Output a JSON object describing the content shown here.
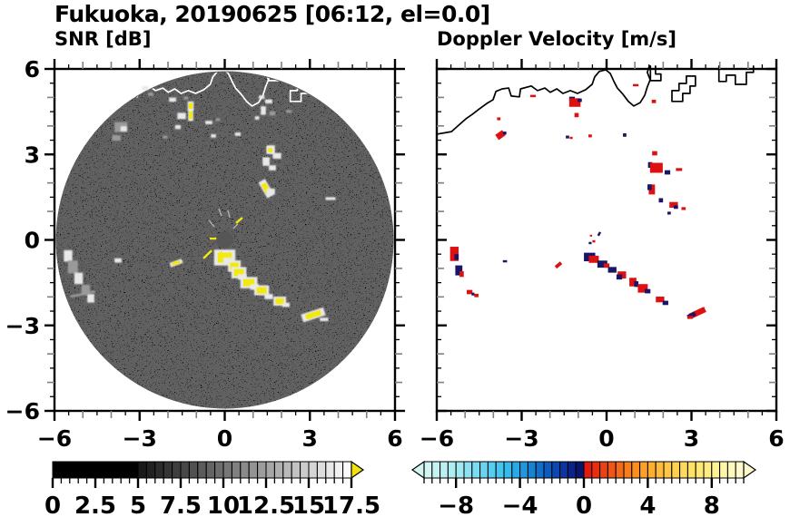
{
  "figure": {
    "title": "Fukuoka, 20190625 [06:12, el=0.0]"
  },
  "colors": {
    "yellow": "#f2e90f",
    "white": "#e9e9e9",
    "gray": "#9a9a9a",
    "red": "#dd1111",
    "navy": "#1a1566",
    "disk": "#000000",
    "center_dot": "#565656",
    "coast_left": "#ffffff",
    "coast_right": "#000000",
    "over_arrow": "#f2e20f"
  },
  "coastline": {
    "units": "km",
    "main": [
      [
        -6,
        3.71
      ],
      [
        -5.48,
        3.8
      ],
      [
        -5.22,
        4.03
      ],
      [
        -4.97,
        4.25
      ],
      [
        -4.74,
        4.41
      ],
      [
        -4.49,
        4.6
      ],
      [
        -4.23,
        4.79
      ],
      [
        -4.01,
        4.92
      ],
      [
        -3.91,
        5.21
      ],
      [
        -3.69,
        5.3
      ],
      [
        -3.46,
        5.33
      ],
      [
        -3.37,
        5.05
      ],
      [
        -3.08,
        5.02
      ],
      [
        -3.04,
        5.3
      ],
      [
        -2.66,
        5.4
      ],
      [
        -2.44,
        5.24
      ],
      [
        -2.18,
        5.33
      ],
      [
        -1.99,
        5.18
      ],
      [
        -1.76,
        5.3
      ],
      [
        -1.54,
        5.14
      ],
      [
        -1.28,
        5.24
      ],
      [
        -1.03,
        5.14
      ],
      [
        -0.74,
        5.27
      ],
      [
        -0.51,
        5.46
      ],
      [
        -0.42,
        5.72
      ],
      [
        -0.26,
        5.91
      ],
      [
        -0.03,
        5.97
      ],
      [
        0.13,
        5.84
      ],
      [
        0.26,
        5.56
      ],
      [
        0.38,
        5.33
      ],
      [
        0.58,
        5.11
      ],
      [
        0.77,
        4.86
      ],
      [
        0.96,
        4.7
      ],
      [
        1.19,
        4.82
      ],
      [
        1.35,
        5.08
      ],
      [
        1.44,
        5.37
      ],
      [
        1.54,
        5.62
      ],
      [
        1.44,
        5.88
      ],
      [
        1.51,
        6.1
      ]
    ],
    "pieces": [
      [
        [
          1.55,
          6.1
        ],
        [
          1.55,
          5.59
        ],
        [
          1.92,
          5.59
        ],
        [
          1.92,
          5.82
        ],
        [
          1.73,
          5.82
        ],
        [
          1.73,
          6.1
        ]
      ],
      [
        [
          2.31,
          4.86
        ],
        [
          2.31,
          5.24
        ],
        [
          2.56,
          5.24
        ],
        [
          2.56,
          5.49
        ],
        [
          2.82,
          5.49
        ],
        [
          2.82,
          5.75
        ],
        [
          3.14,
          5.75
        ],
        [
          3.14,
          5.4
        ],
        [
          2.95,
          5.4
        ],
        [
          2.95,
          5.14
        ],
        [
          2.69,
          5.14
        ],
        [
          2.69,
          4.86
        ],
        [
          2.31,
          4.86
        ]
      ],
      [
        [
          3.97,
          6.1
        ],
        [
          3.97,
          5.56
        ],
        [
          4.23,
          5.56
        ],
        [
          4.23,
          5.78
        ],
        [
          4.55,
          5.78
        ],
        [
          4.55,
          5.46
        ],
        [
          4.94,
          5.46
        ],
        [
          4.94,
          5.88
        ],
        [
          5.19,
          5.88
        ],
        [
          5.19,
          6.1
        ]
      ]
    ]
  },
  "chart_data": [
    {
      "type": "heatmap",
      "panel": "snr",
      "title": "SNR [dB]",
      "xlabel": "",
      "ylabel": "",
      "xlim": [
        -6,
        6
      ],
      "ylim": [
        -6,
        6
      ],
      "x_tick_values": [
        -6,
        -3,
        0,
        3,
        6
      ],
      "x_tick_labels": [
        "−6",
        "−3",
        "0",
        "3",
        "6"
      ],
      "y_tick_values": [
        6,
        3,
        0,
        -3,
        -6
      ],
      "y_tick_labels": [
        "6",
        "3",
        "0",
        "−3",
        "−6"
      ],
      "minor_tick_interval": 0.5,
      "grid": false,
      "disk": {
        "center": [
          0,
          0
        ],
        "radius_km": 5.95,
        "center_dot_radius_km": 0.3
      },
      "center_spokes": [
        [
          0.4,
          0.59,
          0.62,
          0.78,
          "y"
        ],
        [
          0.18,
          0.78,
          0.11,
          1.04,
          "g"
        ],
        [
          -0.11,
          0.84,
          -0.21,
          1.1,
          "g"
        ],
        [
          -0.53,
          0.05,
          -0.27,
          0.05,
          "y"
        ],
        [
          -0.75,
          -0.65,
          -0.46,
          -0.37,
          "y"
        ],
        [
          -0.18,
          -0.5,
          -0.1,
          -0.42,
          "y"
        ],
        [
          0.3,
          0.4,
          0.46,
          0.56,
          "g"
        ],
        [
          -0.37,
          0.46,
          -0.56,
          0.69,
          "g"
        ]
      ],
      "echoes": [
        [
          -2.8,
          5.33,
          0.22,
          0.14,
          "w"
        ],
        [
          -2.61,
          5.11,
          0.18,
          0.12,
          "g"
        ],
        [
          -1.84,
          4.92,
          0.25,
          0.15,
          "w"
        ],
        [
          -1.36,
          4.98,
          0.16,
          0.1,
          "g"
        ],
        [
          -1.2,
          4.7,
          0.14,
          0.2,
          "y"
        ],
        [
          -1.52,
          4.35,
          0.3,
          0.22,
          "w"
        ],
        [
          -1.2,
          4.38,
          0.12,
          0.26,
          "y"
        ],
        [
          -1.65,
          3.96,
          0.2,
          0.14,
          "w"
        ],
        [
          -0.56,
          4.12,
          0.25,
          0.12,
          "w"
        ],
        [
          -0.24,
          4.22,
          0.15,
          0.1,
          "g"
        ],
        [
          -0.4,
          3.65,
          0.18,
          0.12,
          "w"
        ],
        [
          -2.1,
          3.61,
          0.16,
          0.1,
          "g"
        ],
        [
          -3.66,
          3.96,
          0.45,
          0.35,
          "g"
        ],
        [
          -3.56,
          3.9,
          0.22,
          0.18,
          "w"
        ],
        [
          -3.82,
          3.58,
          0.3,
          0.2,
          "g"
        ],
        [
          1.3,
          5.01,
          0.2,
          0.12,
          "w"
        ],
        [
          1.55,
          4.86,
          0.25,
          0.14,
          "w"
        ],
        [
          1.36,
          4.54,
          0.18,
          0.3,
          "w"
        ],
        [
          1.68,
          4.44,
          0.2,
          0.15,
          "g"
        ],
        [
          1.14,
          4.28,
          0.15,
          0.12,
          "w"
        ],
        [
          2.26,
          4.51,
          0.2,
          0.1,
          "g"
        ],
        [
          0.46,
          3.71,
          0.2,
          0.12,
          "w"
        ],
        [
          1.62,
          3.17,
          0.3,
          0.3,
          "w"
        ],
        [
          1.6,
          3.15,
          0.15,
          0.15,
          "y"
        ],
        [
          1.84,
          2.95,
          0.3,
          0.2,
          "w"
        ],
        [
          1.46,
          2.75,
          0.25,
          0.3,
          "w"
        ],
        [
          1.68,
          2.53,
          0.25,
          0.18,
          "w"
        ],
        [
          1.46,
          1.8,
          0.18,
          0.4,
          "y",
          -30
        ],
        [
          1.62,
          1.7,
          0.3,
          0.2,
          "w"
        ],
        [
          3.73,
          1.45,
          0.35,
          0.1,
          "w"
        ],
        [
          0.0,
          -0.62,
          0.5,
          0.35,
          "y"
        ],
        [
          0.1,
          -0.72,
          0.3,
          0.2,
          "w"
        ],
        [
          0.34,
          -0.92,
          0.3,
          0.25,
          "y"
        ],
        [
          0.5,
          -1.15,
          0.35,
          0.25,
          "y"
        ],
        [
          0.62,
          -1.3,
          0.3,
          0.2,
          "w"
        ],
        [
          0.85,
          -1.5,
          0.4,
          0.25,
          "y"
        ],
        [
          1.05,
          -1.65,
          0.3,
          0.2,
          "w"
        ],
        [
          1.3,
          -1.77,
          0.35,
          0.22,
          "y"
        ],
        [
          1.55,
          -1.99,
          0.3,
          0.18,
          "w"
        ],
        [
          1.94,
          -2.15,
          0.3,
          0.2,
          "y"
        ],
        [
          2.16,
          -2.28,
          0.25,
          0.15,
          "w"
        ],
        [
          3.12,
          -2.63,
          0.55,
          0.18,
          "y",
          -18
        ],
        [
          3.5,
          -2.79,
          0.3,
          0.12,
          "w"
        ],
        [
          -1.71,
          -0.81,
          0.3,
          0.1,
          "y",
          -20
        ],
        [
          -3.76,
          -0.72,
          0.25,
          0.15,
          "w"
        ],
        [
          -5.52,
          -0.56,
          0.3,
          0.4,
          "w"
        ],
        [
          -5.35,
          -0.95,
          0.35,
          0.45,
          "g"
        ],
        [
          -5.15,
          -1.35,
          0.3,
          0.4,
          "w"
        ],
        [
          -4.9,
          -1.75,
          0.3,
          0.35,
          "g"
        ],
        [
          -4.72,
          -2.05,
          0.25,
          0.3,
          "w"
        ],
        [
          -5.0,
          -1.9,
          0.9,
          0.08,
          "g",
          -12
        ]
      ],
      "colorbar": {
        "orientation": "horizontal",
        "min": 0,
        "max": 17.5,
        "segment": 0.5,
        "tick_label_values": [
          0,
          2.5,
          5,
          7.5,
          10,
          12.5,
          15,
          17.5
        ],
        "tick_labels": [
          "0",
          "2.5",
          "5",
          "7.5",
          "10",
          "12.5",
          "15",
          "17.5"
        ],
        "solid_black_below": 5,
        "gray_ramp": [
          "#141414",
          "#ffffff"
        ],
        "over_arrow": true,
        "under_arrow": false
      }
    },
    {
      "type": "heatmap",
      "panel": "doppler",
      "title": "Doppler Velocity [m/s]",
      "xlabel": "",
      "ylabel": "",
      "xlim": [
        -6,
        6
      ],
      "ylim": [
        -6,
        6
      ],
      "x_tick_values": [
        -6,
        -3,
        0,
        3,
        6
      ],
      "x_tick_labels": [
        "−6",
        "−3",
        "0",
        "3",
        "6"
      ],
      "y_tick_values": [
        6,
        3,
        0,
        -3,
        -6
      ],
      "y_tick_labels": [],
      "minor_tick_interval": 0.5,
      "grid": false,
      "echoes": [
        [
          -2.6,
          5.05,
          0.2,
          0.08,
          "r"
        ],
        [
          -1.22,
          4.95,
          0.2,
          0.15,
          "n"
        ],
        [
          -1.12,
          4.82,
          0.4,
          0.3,
          "r"
        ],
        [
          -0.95,
          4.9,
          0.15,
          0.12,
          "n"
        ],
        [
          -1.06,
          4.38,
          0.15,
          0.15,
          "r"
        ],
        [
          1.03,
          5.43,
          0.2,
          0.08,
          "r"
        ],
        [
          1.67,
          4.86,
          0.15,
          0.12,
          "r"
        ],
        [
          -3.81,
          4.25,
          0.12,
          0.1,
          "r"
        ],
        [
          -3.75,
          3.68,
          0.3,
          0.22,
          "r",
          -35
        ],
        [
          -3.6,
          3.75,
          0.12,
          0.1,
          "n"
        ],
        [
          -1.38,
          3.61,
          0.12,
          0.1,
          "n"
        ],
        [
          -1.25,
          3.58,
          0.1,
          0.08,
          "r"
        ],
        [
          -0.58,
          3.65,
          0.12,
          0.1,
          "r"
        ],
        [
          0.64,
          3.68,
          0.12,
          0.12,
          "n"
        ],
        [
          1.7,
          3.04,
          0.18,
          0.15,
          "r"
        ],
        [
          1.54,
          2.63,
          0.15,
          0.2,
          "n"
        ],
        [
          1.76,
          2.53,
          0.45,
          0.35,
          "r"
        ],
        [
          2.15,
          2.37,
          0.2,
          0.15,
          "n"
        ],
        [
          2.56,
          2.47,
          0.22,
          0.1,
          "r"
        ],
        [
          1.6,
          1.77,
          0.22,
          0.35,
          "r"
        ],
        [
          1.52,
          1.85,
          0.15,
          0.2,
          "n"
        ],
        [
          1.92,
          1.39,
          0.15,
          0.15,
          "n"
        ],
        [
          2.37,
          1.23,
          0.3,
          0.2,
          "r"
        ],
        [
          2.45,
          1.15,
          0.15,
          0.12,
          "n"
        ],
        [
          2.72,
          1.1,
          0.15,
          0.1,
          "r"
        ],
        [
          2.21,
          0.94,
          0.12,
          0.1,
          "n"
        ],
        [
          -0.26,
          0.21,
          0.15,
          0.08,
          "n",
          -60
        ],
        [
          -0.55,
          0.15,
          0.08,
          0.06,
          "r"
        ],
        [
          -0.45,
          -0.05,
          0.1,
          0.08,
          "r"
        ],
        [
          -0.58,
          -0.11,
          0.1,
          0.08,
          "n"
        ],
        [
          -5.38,
          -0.49,
          0.3,
          0.5,
          "r"
        ],
        [
          -5.3,
          -0.6,
          0.15,
          0.2,
          "n"
        ],
        [
          -5.22,
          -1.07,
          0.25,
          0.35,
          "n"
        ],
        [
          -5.12,
          -1.2,
          0.15,
          0.2,
          "r"
        ],
        [
          -4.84,
          -1.83,
          0.2,
          0.15,
          "r"
        ],
        [
          -4.6,
          -1.95,
          0.15,
          0.12,
          "r"
        ],
        [
          -4.72,
          -1.9,
          0.1,
          0.1,
          "n"
        ],
        [
          -3.59,
          -0.75,
          0.15,
          0.08,
          "n"
        ],
        [
          -1.7,
          -0.88,
          0.25,
          0.12,
          "r",
          -40
        ],
        [
          -0.6,
          -0.6,
          0.4,
          0.3,
          "n"
        ],
        [
          -0.45,
          -0.68,
          0.35,
          0.25,
          "r"
        ],
        [
          -0.15,
          -0.85,
          0.35,
          0.25,
          "n"
        ],
        [
          0.0,
          -0.9,
          0.2,
          0.15,
          "r"
        ],
        [
          0.2,
          -1.05,
          0.3,
          0.2,
          "n"
        ],
        [
          0.54,
          -1.23,
          0.3,
          0.25,
          "r"
        ],
        [
          0.45,
          -1.3,
          0.2,
          0.18,
          "n"
        ],
        [
          0.93,
          -1.48,
          0.25,
          0.3,
          "r"
        ],
        [
          1.05,
          -1.55,
          0.15,
          0.2,
          "n"
        ],
        [
          1.28,
          -1.7,
          0.35,
          0.3,
          "r"
        ],
        [
          1.45,
          -1.8,
          0.2,
          0.15,
          "n"
        ],
        [
          1.89,
          -2.09,
          0.3,
          0.2,
          "r"
        ],
        [
          2.08,
          -2.21,
          0.2,
          0.15,
          "n"
        ],
        [
          3.21,
          -2.56,
          0.6,
          0.2,
          "r",
          -25
        ],
        [
          3.0,
          -2.65,
          0.3,
          0.15,
          "n",
          -25
        ],
        [
          2.95,
          -2.72,
          0.2,
          0.1,
          "r"
        ]
      ],
      "colorbar": {
        "orientation": "horizontal",
        "min": -10,
        "max": 10,
        "segment": 0.5,
        "tick_label_values": [
          -8,
          -4,
          0,
          4,
          8
        ],
        "tick_labels": [
          "−8",
          "−4",
          "0",
          "4",
          "8"
        ],
        "over_arrow": true,
        "under_arrow": true,
        "color_stops": [
          [
            -10,
            "#d8f6f4"
          ],
          [
            -8,
            "#a8ecf0"
          ],
          [
            -6,
            "#5ed2f2"
          ],
          [
            -5,
            "#3cc2ee"
          ],
          [
            -4,
            "#20a2e4"
          ],
          [
            -3,
            "#1478d0"
          ],
          [
            -2,
            "#0c50b8"
          ],
          [
            -1,
            "#0a2c96"
          ],
          [
            -0.5,
            "#091a7a"
          ],
          [
            0,
            "#071058"
          ],
          [
            0.001,
            "#e01010"
          ],
          [
            1,
            "#e93812"
          ],
          [
            2,
            "#f16016"
          ],
          [
            3,
            "#f9861e"
          ],
          [
            4,
            "#fda82a"
          ],
          [
            5,
            "#ffc240"
          ],
          [
            6,
            "#ffd654"
          ],
          [
            7,
            "#ffe56c"
          ],
          [
            8,
            "#fff08c"
          ],
          [
            9,
            "#fff7b2"
          ],
          [
            10,
            "#fffad6"
          ]
        ]
      }
    }
  ]
}
